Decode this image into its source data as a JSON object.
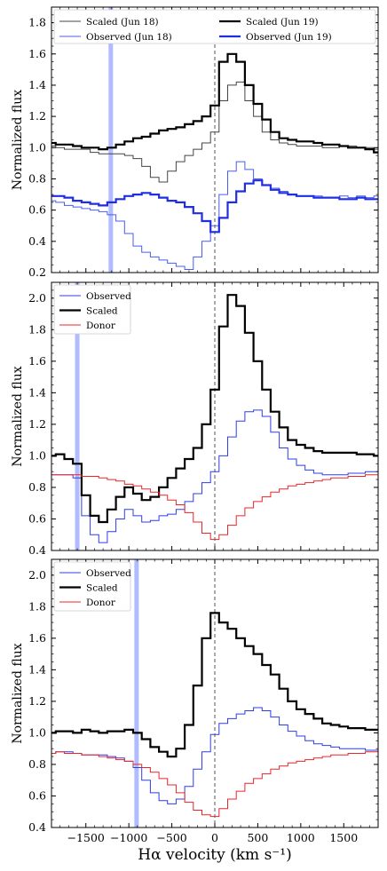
{
  "figure": {
    "xlabel": "Hα velocity (km s⁻¹)",
    "ylabel": "Normalized flux",
    "xlim": [
      -1900,
      1900
    ],
    "xticks": [
      -1500,
      -1000,
      -500,
      0,
      500,
      1000,
      1500
    ],
    "zero_line": 0
  },
  "chart_data": [
    {
      "type": "line",
      "panel": "top",
      "xlabel": "",
      "ylabel": "Normalized flux",
      "xlim": [
        -1900,
        1900
      ],
      "ylim": [
        0.2,
        1.9
      ],
      "yticks": [
        "0.2",
        "0.4",
        "0.6",
        "0.8",
        "1.0",
        "1.2",
        "1.4",
        "1.6",
        "1.8"
      ],
      "legend": {
        "position": "top",
        "columns": 2
      },
      "shaded_band": {
        "x": -1210,
        "width": 40,
        "color": "#a9b4ff"
      },
      "series": [
        {
          "name": "Scaled (Jun 18)",
          "color": "#444444",
          "width": 1,
          "x": [
            -1900,
            -1800,
            -1700,
            -1600,
            -1500,
            -1400,
            -1300,
            -1200,
            -1100,
            -1000,
            -900,
            -800,
            -700,
            -600,
            -500,
            -400,
            -300,
            -200,
            -100,
            0,
            100,
            200,
            300,
            400,
            500,
            600,
            700,
            800,
            900,
            1000,
            1100,
            1200,
            1300,
            1400,
            1500,
            1600,
            1700,
            1800,
            1900
          ],
          "y": [
            1.01,
            1.0,
            0.99,
            0.99,
            0.99,
            0.97,
            0.96,
            0.96,
            0.96,
            0.95,
            0.93,
            0.88,
            0.81,
            0.78,
            0.85,
            0.91,
            0.95,
            0.99,
            1.03,
            1.1,
            1.3,
            1.4,
            1.42,
            1.3,
            1.2,
            1.1,
            1.05,
            1.03,
            1.02,
            1.01,
            1.01,
            1.01,
            1.0,
            1.0,
            1.01,
            1.01,
            1.0,
            1.0,
            0.99
          ]
        },
        {
          "name": "Observed (Jun 18)",
          "color": "#4a5cf0",
          "width": 1,
          "x": [
            -1900,
            -1800,
            -1700,
            -1600,
            -1500,
            -1400,
            -1300,
            -1200,
            -1100,
            -1000,
            -900,
            -800,
            -700,
            -600,
            -500,
            -400,
            -300,
            -200,
            -100,
            0,
            100,
            200,
            300,
            400,
            500,
            600,
            700,
            800,
            900,
            1000,
            1100,
            1200,
            1300,
            1400,
            1500,
            1600,
            1700,
            1800,
            1900
          ],
          "y": [
            0.66,
            0.65,
            0.63,
            0.62,
            0.61,
            0.6,
            0.59,
            0.57,
            0.53,
            0.45,
            0.37,
            0.33,
            0.3,
            0.28,
            0.26,
            0.24,
            0.22,
            0.3,
            0.4,
            0.5,
            0.7,
            0.85,
            0.91,
            0.86,
            0.8,
            0.76,
            0.74,
            0.72,
            0.7,
            0.69,
            0.69,
            0.69,
            0.68,
            0.68,
            0.69,
            0.68,
            0.69,
            0.68,
            0.69
          ]
        },
        {
          "name": "Scaled (Jun 19)",
          "color": "#000000",
          "width": 2.2,
          "x": [
            -1900,
            -1800,
            -1700,
            -1600,
            -1500,
            -1400,
            -1300,
            -1200,
            -1100,
            -1000,
            -900,
            -800,
            -700,
            -600,
            -500,
            -400,
            -300,
            -200,
            -100,
            0,
            100,
            200,
            300,
            400,
            500,
            600,
            700,
            800,
            900,
            1000,
            1100,
            1200,
            1300,
            1400,
            1500,
            1600,
            1700,
            1800,
            1900
          ],
          "y": [
            1.03,
            1.02,
            1.02,
            1.01,
            1.0,
            1.0,
            0.99,
            1.0,
            1.02,
            1.04,
            1.06,
            1.07,
            1.09,
            1.11,
            1.12,
            1.13,
            1.15,
            1.17,
            1.2,
            1.27,
            1.55,
            1.6,
            1.55,
            1.4,
            1.28,
            1.18,
            1.1,
            1.06,
            1.05,
            1.04,
            1.04,
            1.03,
            1.02,
            1.02,
            1.01,
            1.0,
            1.0,
            0.99,
            0.97
          ]
        },
        {
          "name": "Observed (Jun 19)",
          "color": "#1f2ee0",
          "width": 2.2,
          "x": [
            -1900,
            -1800,
            -1700,
            -1600,
            -1500,
            -1400,
            -1300,
            -1200,
            -1100,
            -1000,
            -900,
            -800,
            -700,
            -600,
            -500,
            -400,
            -300,
            -200,
            -100,
            0,
            100,
            200,
            300,
            400,
            500,
            600,
            700,
            800,
            900,
            1000,
            1100,
            1200,
            1300,
            1400,
            1500,
            1600,
            1700,
            1800,
            1900
          ],
          "y": [
            0.69,
            0.69,
            0.68,
            0.66,
            0.65,
            0.64,
            0.63,
            0.65,
            0.67,
            0.69,
            0.7,
            0.71,
            0.7,
            0.68,
            0.66,
            0.65,
            0.62,
            0.58,
            0.53,
            0.46,
            0.55,
            0.65,
            0.72,
            0.77,
            0.79,
            0.76,
            0.73,
            0.71,
            0.7,
            0.69,
            0.69,
            0.68,
            0.68,
            0.68,
            0.67,
            0.67,
            0.68,
            0.67,
            0.67
          ]
        }
      ]
    },
    {
      "type": "line",
      "panel": "middle",
      "xlabel": "",
      "ylabel": "Normalized flux",
      "xlim": [
        -1900,
        1900
      ],
      "ylim": [
        0.4,
        2.1
      ],
      "yticks": [
        "0.4",
        "0.6",
        "0.8",
        "1.0",
        "1.2",
        "1.4",
        "1.6",
        "1.8",
        "2.0"
      ],
      "legend": {
        "position": "top-left"
      },
      "shaded_band": {
        "x": -1600,
        "width": 40,
        "color": "#a9b4ff"
      },
      "series": [
        {
          "name": "Observed",
          "color": "#2f3de8",
          "width": 1,
          "x": [
            -1900,
            -1800,
            -1700,
            -1600,
            -1500,
            -1400,
            -1300,
            -1200,
            -1100,
            -1000,
            -900,
            -800,
            -700,
            -600,
            -500,
            -400,
            -300,
            -200,
            -100,
            0,
            100,
            200,
            300,
            400,
            500,
            600,
            700,
            800,
            900,
            1000,
            1100,
            1200,
            1300,
            1400,
            1500,
            1600,
            1700,
            1800,
            1900
          ],
          "y": [
            0.88,
            0.88,
            0.88,
            0.86,
            0.62,
            0.5,
            0.45,
            0.52,
            0.6,
            0.66,
            0.62,
            0.58,
            0.59,
            0.62,
            0.63,
            0.66,
            0.71,
            0.76,
            0.83,
            0.9,
            1.0,
            1.12,
            1.22,
            1.28,
            1.29,
            1.25,
            1.15,
            1.05,
            0.98,
            0.94,
            0.91,
            0.89,
            0.88,
            0.88,
            0.88,
            0.89,
            0.89,
            0.9,
            0.9
          ]
        },
        {
          "name": "Scaled",
          "color": "#000000",
          "width": 2.2,
          "x": [
            -1900,
            -1800,
            -1700,
            -1600,
            -1500,
            -1400,
            -1300,
            -1200,
            -1100,
            -1000,
            -900,
            -800,
            -700,
            -600,
            -500,
            -400,
            -300,
            -200,
            -100,
            0,
            100,
            200,
            300,
            400,
            500,
            600,
            700,
            800,
            900,
            1000,
            1100,
            1200,
            1300,
            1400,
            1500,
            1600,
            1700,
            1800,
            1900
          ],
          "y": [
            1.0,
            1.01,
            0.98,
            0.95,
            0.75,
            0.62,
            0.58,
            0.66,
            0.74,
            0.8,
            0.76,
            0.72,
            0.74,
            0.8,
            0.86,
            0.92,
            0.98,
            1.05,
            1.2,
            1.42,
            1.82,
            2.02,
            1.95,
            1.78,
            1.6,
            1.42,
            1.28,
            1.18,
            1.1,
            1.07,
            1.05,
            1.03,
            1.02,
            1.02,
            1.02,
            1.02,
            1.01,
            1.01,
            1.0
          ]
        },
        {
          "name": "Donor",
          "color": "#e8262a",
          "width": 1,
          "x": [
            -1900,
            -1800,
            -1700,
            -1600,
            -1500,
            -1400,
            -1300,
            -1200,
            -1100,
            -1000,
            -900,
            -800,
            -700,
            -600,
            -500,
            -400,
            -300,
            -200,
            -100,
            0,
            100,
            200,
            300,
            400,
            500,
            600,
            700,
            800,
            900,
            1000,
            1100,
            1200,
            1300,
            1400,
            1500,
            1600,
            1700,
            1800,
            1900
          ],
          "y": [
            0.88,
            0.88,
            0.88,
            0.88,
            0.87,
            0.87,
            0.86,
            0.85,
            0.84,
            0.82,
            0.81,
            0.79,
            0.77,
            0.75,
            0.72,
            0.69,
            0.64,
            0.58,
            0.51,
            0.47,
            0.5,
            0.56,
            0.62,
            0.67,
            0.71,
            0.74,
            0.77,
            0.79,
            0.81,
            0.82,
            0.83,
            0.84,
            0.85,
            0.86,
            0.86,
            0.87,
            0.87,
            0.88,
            0.88
          ]
        }
      ]
    },
    {
      "type": "line",
      "panel": "bottom",
      "xlabel": "Hα velocity (km s⁻¹)",
      "ylabel": "Normalized flux",
      "xlim": [
        -1900,
        1900
      ],
      "ylim": [
        0.4,
        2.1
      ],
      "yticks": [
        "0.4",
        "0.6",
        "0.8",
        "1.0",
        "1.2",
        "1.4",
        "1.6",
        "1.8",
        "2.0"
      ],
      "xticks": [
        "−1500",
        "−1000",
        "−500",
        "0",
        "500",
        "1000",
        "1500"
      ],
      "legend": {
        "position": "top-left"
      },
      "shaded_band": {
        "x": -910,
        "width": 40,
        "color": "#a9b4ff"
      },
      "series": [
        {
          "name": "Observed",
          "color": "#2f3de8",
          "width": 1,
          "x": [
            -1900,
            -1800,
            -1700,
            -1600,
            -1500,
            -1400,
            -1300,
            -1200,
            -1100,
            -1000,
            -900,
            -800,
            -700,
            -600,
            -500,
            -400,
            -300,
            -200,
            -100,
            0,
            100,
            200,
            300,
            400,
            500,
            600,
            700,
            800,
            900,
            1000,
            1100,
            1200,
            1300,
            1400,
            1500,
            1600,
            1700,
            1800,
            1900
          ],
          "y": [
            0.87,
            0.88,
            0.88,
            0.87,
            0.86,
            0.86,
            0.86,
            0.85,
            0.84,
            0.82,
            0.78,
            0.7,
            0.62,
            0.57,
            0.55,
            0.58,
            0.66,
            0.77,
            0.88,
            0.99,
            1.06,
            1.09,
            1.12,
            1.14,
            1.16,
            1.14,
            1.1,
            1.05,
            1.01,
            0.98,
            0.95,
            0.93,
            0.92,
            0.91,
            0.9,
            0.9,
            0.9,
            0.89,
            0.89
          ]
        },
        {
          "name": "Scaled",
          "color": "#000000",
          "width": 2.2,
          "x": [
            -1900,
            -1800,
            -1700,
            -1600,
            -1500,
            -1400,
            -1300,
            -1200,
            -1100,
            -1000,
            -900,
            -800,
            -700,
            -600,
            -500,
            -400,
            -300,
            -200,
            -100,
            0,
            100,
            200,
            300,
            400,
            500,
            600,
            700,
            800,
            900,
            1000,
            1100,
            1200,
            1300,
            1400,
            1500,
            1600,
            1700,
            1800,
            1900
          ],
          "y": [
            1.0,
            1.01,
            1.01,
            1.0,
            1.02,
            1.01,
            1.0,
            1.01,
            1.01,
            1.02,
            1.0,
            0.96,
            0.91,
            0.88,
            0.85,
            0.9,
            1.05,
            1.3,
            1.6,
            1.76,
            1.7,
            1.66,
            1.6,
            1.55,
            1.5,
            1.43,
            1.37,
            1.28,
            1.2,
            1.15,
            1.12,
            1.09,
            1.06,
            1.05,
            1.04,
            1.03,
            1.03,
            1.02,
            1.02
          ]
        },
        {
          "name": "Donor",
          "color": "#e8262a",
          "width": 1,
          "x": [
            -1900,
            -1800,
            -1700,
            -1600,
            -1500,
            -1400,
            -1300,
            -1200,
            -1100,
            -1000,
            -900,
            -800,
            -700,
            -600,
            -500,
            -400,
            -300,
            -200,
            -100,
            0,
            100,
            200,
            300,
            400,
            500,
            600,
            700,
            800,
            900,
            1000,
            1100,
            1200,
            1300,
            1400,
            1500,
            1600,
            1700,
            1800,
            1900
          ],
          "y": [
            0.87,
            0.88,
            0.87,
            0.87,
            0.86,
            0.86,
            0.85,
            0.84,
            0.83,
            0.82,
            0.8,
            0.78,
            0.75,
            0.71,
            0.67,
            0.62,
            0.56,
            0.51,
            0.48,
            0.47,
            0.52,
            0.58,
            0.63,
            0.68,
            0.71,
            0.74,
            0.77,
            0.79,
            0.81,
            0.82,
            0.83,
            0.84,
            0.85,
            0.86,
            0.86,
            0.87,
            0.87,
            0.88,
            0.88
          ]
        }
      ]
    }
  ]
}
